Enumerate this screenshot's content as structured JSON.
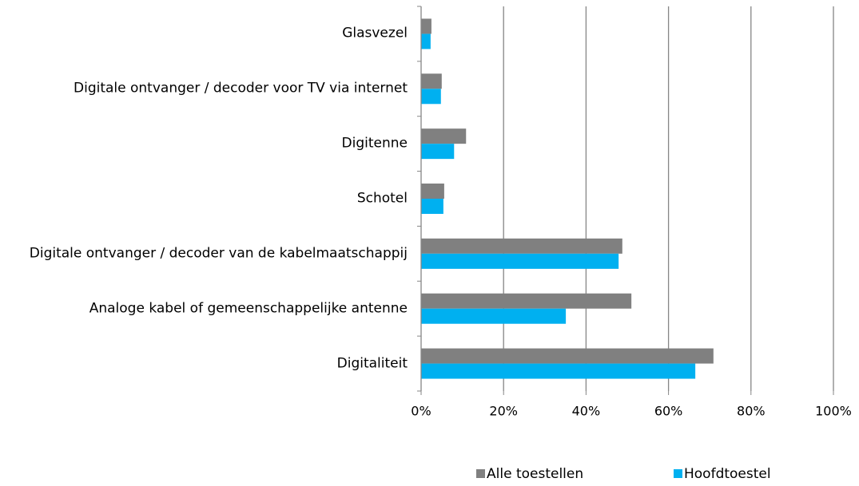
{
  "chart_data": {
    "type": "bar",
    "orientation": "horizontal",
    "categories": [
      "Glasvezel",
      "Digitale ontvanger / decoder voor TV via internet",
      "Digitenne",
      "Schotel",
      "Digitale ontvanger / decoder van de kabelmaatschappij",
      "Analoge kabel of gemeenschappelijke antenne",
      "Digitaliteit"
    ],
    "series": [
      {
        "name": "Alle toestellen",
        "color": "#808080",
        "values": [
          2.5,
          5,
          10.9,
          5.6,
          48.8,
          51,
          70.9
        ]
      },
      {
        "name": "Hoofdtoestel",
        "color": "#00b0f0",
        "values": [
          2.3,
          4.8,
          8,
          5.4,
          47.9,
          35.1,
          66.5
        ]
      }
    ],
    "xlim": [
      0,
      100
    ],
    "xticks": [
      {
        "value": 0,
        "label": "0%"
      },
      {
        "value": 20,
        "label": "20%"
      },
      {
        "value": 40,
        "label": "40%"
      },
      {
        "value": 60,
        "label": "60%"
      },
      {
        "value": 80,
        "label": "80%"
      },
      {
        "value": 100,
        "label": "100%"
      }
    ],
    "grid": true,
    "legend": "bottom"
  }
}
